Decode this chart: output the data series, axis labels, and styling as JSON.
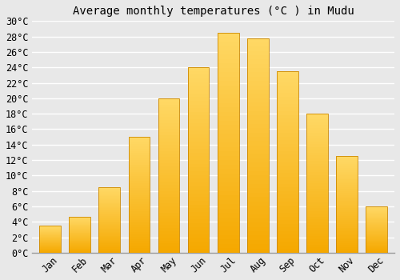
{
  "title": "Average monthly temperatures (°C ) in Mudu",
  "months": [
    "Jan",
    "Feb",
    "Mar",
    "Apr",
    "May",
    "Jun",
    "Jul",
    "Aug",
    "Sep",
    "Oct",
    "Nov",
    "Dec"
  ],
  "values": [
    3.5,
    4.7,
    8.5,
    15.0,
    20.0,
    24.0,
    28.5,
    27.8,
    23.5,
    18.0,
    12.5,
    6.0
  ],
  "bar_color_bottom": "#F5A800",
  "bar_color_top": "#FFD966",
  "bar_edge_color": "#CC8800",
  "background_color": "#E8E8E8",
  "grid_color": "#FFFFFF",
  "ylim": [
    0,
    30
  ],
  "ytick_step": 2,
  "title_fontsize": 10,
  "tick_fontsize": 8.5,
  "font_family": "monospace"
}
